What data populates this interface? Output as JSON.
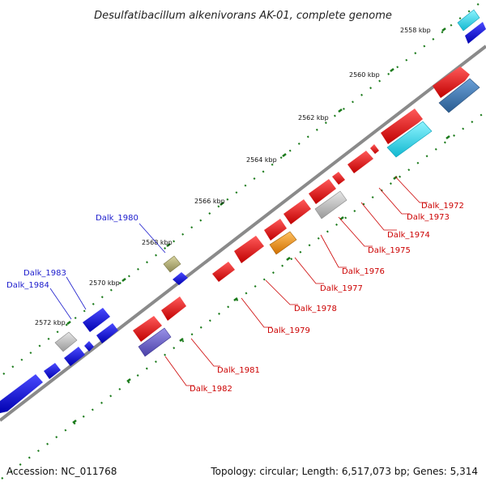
{
  "title": "Desulfatibacillum alkenivorans AK-01, complete genome",
  "footer": {
    "accession": "Accession: NC_011768",
    "summary": "Topology: circular; Length: 6,517,073 bp; Genes: 5,314"
  },
  "scale_labels": [
    "2558 kbp",
    "2560 kbp",
    "2562 kbp",
    "2564 kbp",
    "2566 kbp",
    "2568 kbp",
    "2570 kbp",
    "2572 kbp"
  ],
  "gene_labels": {
    "blue": [
      "Dalk_1980",
      "Dalk_1983",
      "Dalk_1984"
    ],
    "red": [
      "Dalk_1972",
      "Dalk_1973",
      "Dalk_1974",
      "Dalk_1975",
      "Dalk_1976",
      "Dalk_1977",
      "Dalk_1978",
      "Dalk_1979",
      "Dalk_1981",
      "Dalk_1982"
    ]
  },
  "colors": {
    "forward": "#1a1aee",
    "reverse": "#e01010",
    "reverse_label": "#cc0000",
    "forward_label": "#1a1acc",
    "backbone": "#888888",
    "tick": "#1a7a1a",
    "grey_feature": "#bdbdbd",
    "olive_feature": "#b5b07a",
    "cyan_feature": "#22d8ee",
    "steel_feature": "#3a78b8",
    "orange_feature": "#f09010",
    "violet_feature": "#6a5fc8"
  }
}
